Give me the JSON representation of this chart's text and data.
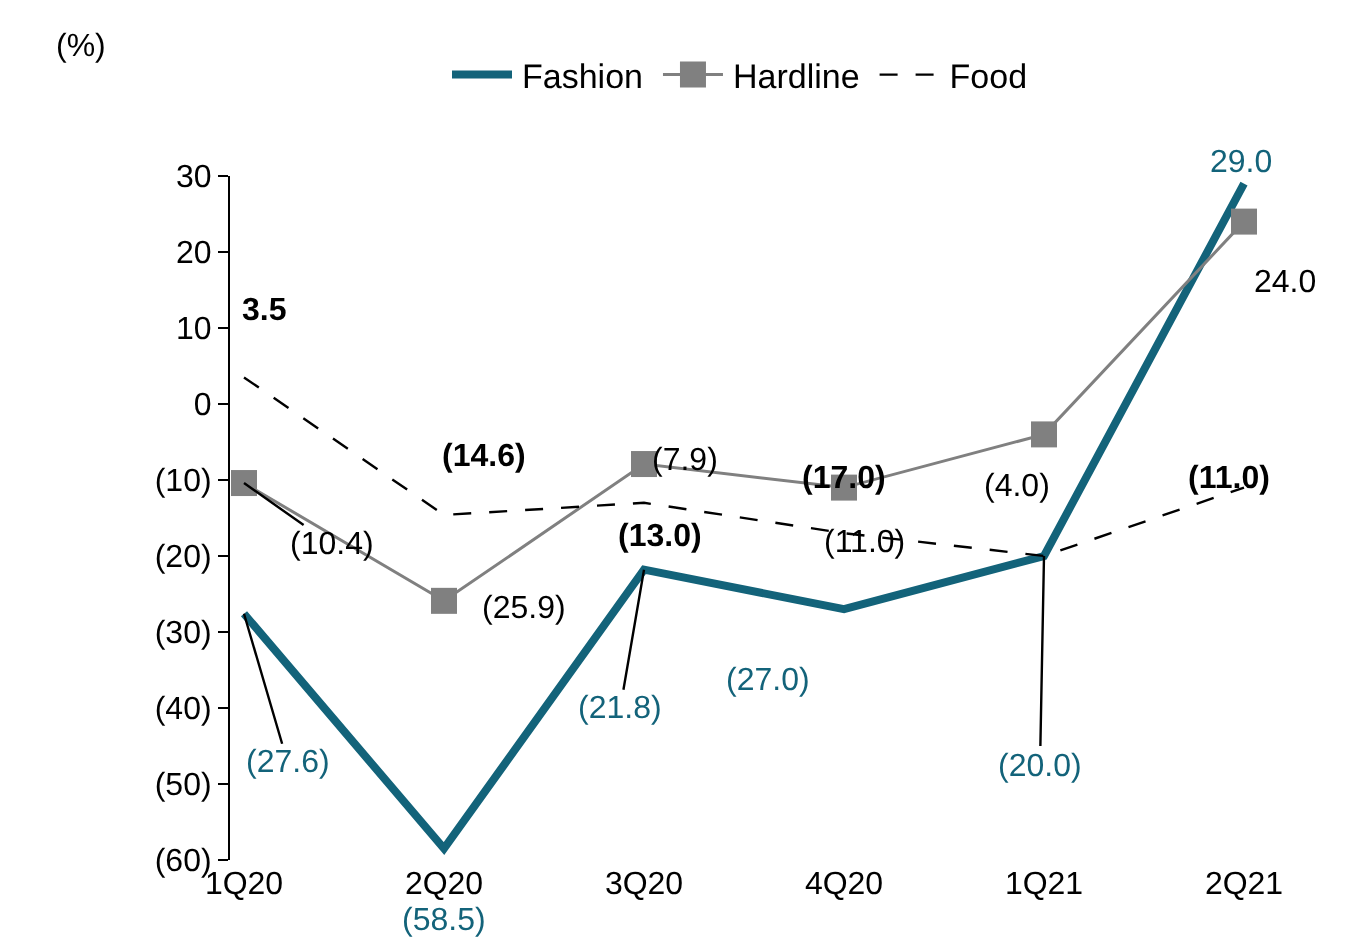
{
  "chart_data": {
    "type": "line",
    "ylabel": "(%)",
    "categories": [
      "1Q20",
      "2Q20",
      "3Q20",
      "4Q20",
      "1Q21",
      "2Q21"
    ],
    "series": [
      {
        "name": "Fashion",
        "color": "#13637a",
        "values": [
          -27.6,
          -58.5,
          -21.8,
          -27.0,
          -20.0,
          29.0
        ],
        "value_labels": [
          "(27.6)",
          "(58.5)",
          "(21.8)",
          "(27.0)",
          "(20.0)",
          "29.0"
        ],
        "marker": "none",
        "line_style": "solid"
      },
      {
        "name": "Hardline",
        "color": "#808080",
        "values": [
          -10.4,
          -25.9,
          -7.9,
          -11.0,
          -4.0,
          24.0
        ],
        "value_labels": [
          "(10.4)",
          "(25.9)",
          "(7.9)",
          "(11.0)",
          "(4.0)",
          "24.0"
        ],
        "marker": "square",
        "line_style": "solid"
      },
      {
        "name": "Food",
        "color": "#000000",
        "values": [
          3.5,
          -14.6,
          -13.0,
          -17.0,
          -20.0,
          -11.0
        ],
        "value_labels": [
          "3.5",
          "(14.6)",
          "(13.0)",
          "(17.0)",
          null,
          "(11.0)"
        ],
        "marker": "none",
        "line_style": "dashed"
      }
    ],
    "ylim": [
      -60,
      30
    ],
    "yticks": [
      {
        "value": -60,
        "label": "(60)"
      },
      {
        "value": -50,
        "label": "(50)"
      },
      {
        "value": -40,
        "label": "(40)"
      },
      {
        "value": -30,
        "label": "(30)"
      },
      {
        "value": -20,
        "label": "(20)"
      },
      {
        "value": -10,
        "label": "(10)"
      },
      0,
      10,
      20,
      30
    ],
    "grid": false,
    "legend": "top"
  }
}
